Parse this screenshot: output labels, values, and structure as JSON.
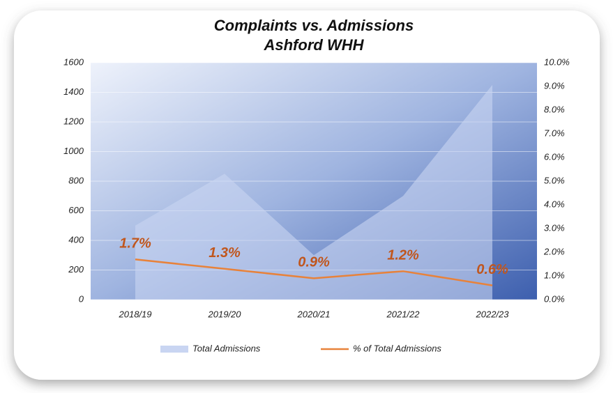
{
  "chart_data": {
    "type": "combo",
    "title": "Complaints vs. Admissions",
    "subtitle": "Ashford WHH",
    "categories": [
      "2018/19",
      "2019/20",
      "2020/21",
      "2021/22",
      "2022/23"
    ],
    "series": [
      {
        "name": "Total Admissions",
        "type": "area",
        "color": "#c9d5f2",
        "values": [
          500,
          850,
          300,
          700,
          1450
        ]
      },
      {
        "name": "% of Total Admissions",
        "type": "line",
        "axis": "y2",
        "color": "#e8823a",
        "values": [
          1.7,
          1.3,
          0.9,
          1.2,
          0.6
        ],
        "value_labels": [
          "1.7%",
          "1.3%",
          "0.9%",
          "1.2%",
          "0.6%"
        ]
      }
    ],
    "ylim": [
      0,
      1600
    ],
    "yticks": [
      0,
      200,
      400,
      600,
      800,
      1000,
      1200,
      1400,
      1600
    ],
    "y2lim": [
      0,
      10
    ],
    "y2ticks": [
      {
        "value": 0,
        "label": "0.0%"
      },
      {
        "value": 1,
        "label": "1.0%"
      },
      {
        "value": 2,
        "label": "2.0%"
      },
      {
        "value": 3,
        "label": "3.0%"
      },
      {
        "value": 4,
        "label": "4.0%"
      },
      {
        "value": 5,
        "label": "5.0%"
      },
      {
        "value": 6,
        "label": "6.0%"
      },
      {
        "value": 7,
        "label": "7.0%"
      },
      {
        "value": 8,
        "label": "8.0%"
      },
      {
        "value": 9,
        "label": "9.0%"
      },
      {
        "value": 10,
        "label": "10.0%"
      }
    ],
    "grid": true,
    "legend": "bottom"
  }
}
